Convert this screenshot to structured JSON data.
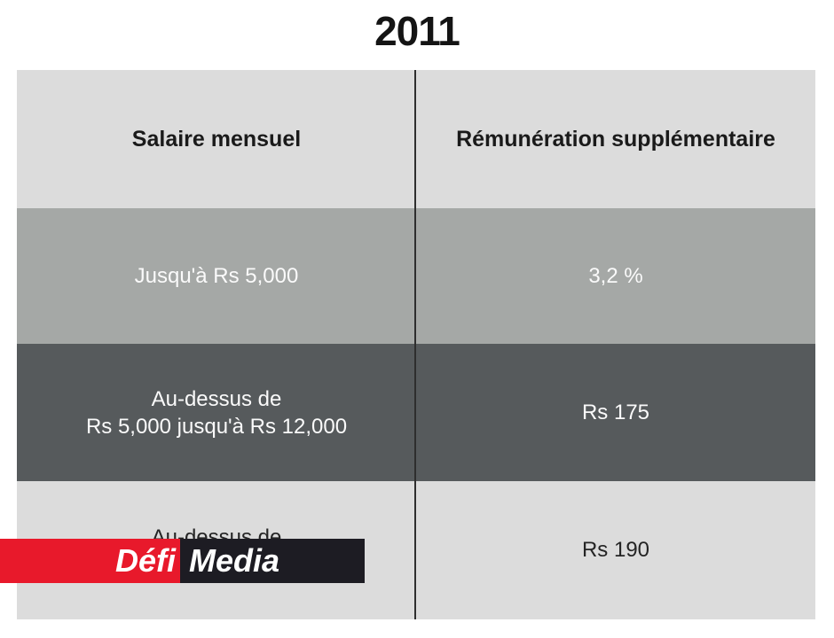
{
  "title": "2011",
  "table": {
    "columns": [
      "Salaire mensuel",
      "Rémunération supplémentaire"
    ],
    "rows": [
      {
        "salaire": "Jusqu'à Rs 5,000",
        "remuneration": "3,2 %"
      },
      {
        "salaire_line1": "Au-dessus de",
        "salaire_line2": "Rs 5,000 jusqu'à Rs 12,000",
        "remuneration": "Rs 175"
      },
      {
        "salaire": "Au-dessus de",
        "remuneration": "Rs 190"
      }
    ]
  },
  "logo": {
    "part1": "Défi",
    "part2": "Media"
  },
  "colors": {
    "cell-light": "#dcdcdc",
    "cell-medium": "#a5a8a6",
    "cell-dark": "#565a5c",
    "divider": "#2e2e2e",
    "logo-red": "#e8192b",
    "logo-black": "#1d1c23",
    "text-dark": "#1a1a1a",
    "text-light": "#fafafa"
  },
  "chart_data": {
    "type": "table",
    "title": "2011",
    "columns": [
      "Salaire mensuel",
      "Rémunération supplémentaire"
    ],
    "rows": [
      [
        "Jusqu'à Rs 5,000",
        "3,2 %"
      ],
      [
        "Au-dessus de Rs 5,000 jusqu'à Rs 12,000",
        "Rs 175"
      ],
      [
        "Au-dessus de",
        "Rs 190"
      ]
    ]
  }
}
